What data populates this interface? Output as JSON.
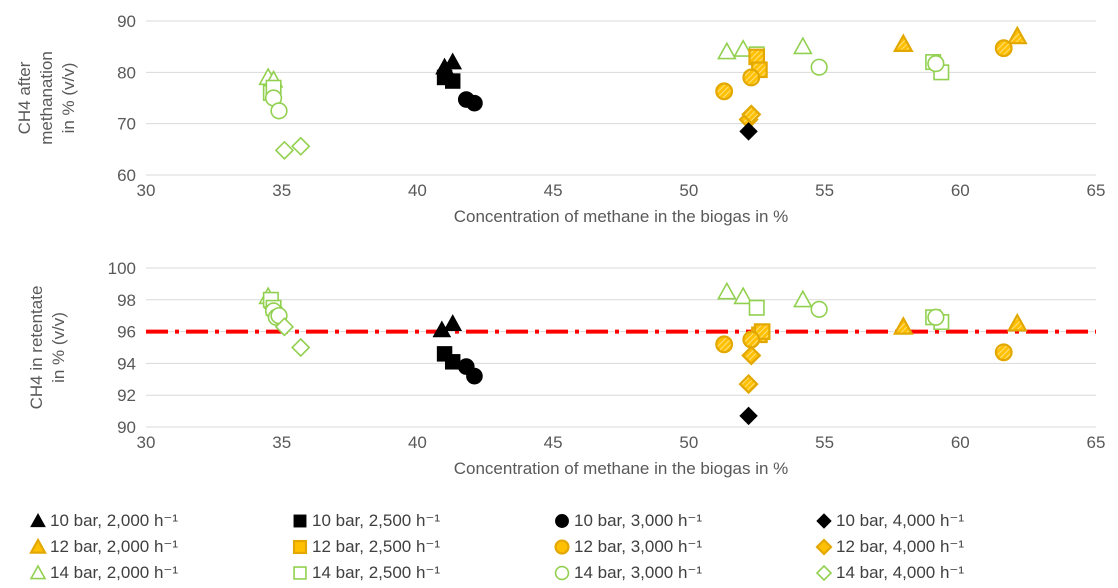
{
  "colors": {
    "s10": "#000000",
    "s12": "#FFC000",
    "s12_stroke": "#E3A800",
    "s14": "#92D050",
    "grid": "#D9D9D9",
    "axis_text": "#595959",
    "threshold": "#FF0000"
  },
  "legend": {
    "items": [
      {
        "label": "10 bar, 2,000 h⁻¹",
        "marker": "triangle",
        "style": "filled-black"
      },
      {
        "label": "10 bar, 2,500 h⁻¹",
        "marker": "square",
        "style": "filled-black"
      },
      {
        "label": "10 bar, 3,000 h⁻¹",
        "marker": "circle",
        "style": "filled-black"
      },
      {
        "label": "10 bar, 4,000 h⁻¹",
        "marker": "diamond",
        "style": "filled-black"
      },
      {
        "label": "12 bar, 2,000 h⁻¹",
        "marker": "triangle",
        "style": "hatched-orange"
      },
      {
        "label": "12 bar, 2,500 h⁻¹",
        "marker": "square",
        "style": "hatched-orange"
      },
      {
        "label": "12 bar, 3,000 h⁻¹",
        "marker": "circle",
        "style": "hatched-orange"
      },
      {
        "label": "12 bar, 4,000 h⁻¹",
        "marker": "diamond",
        "style": "hatched-orange"
      },
      {
        "label": "14 bar, 2,000 h⁻¹",
        "marker": "triangle",
        "style": "open-green"
      },
      {
        "label": "14 bar, 2,500 h⁻¹",
        "marker": "square",
        "style": "open-green"
      },
      {
        "label": "14 bar, 3,000 h⁻¹",
        "marker": "circle",
        "style": "open-green"
      },
      {
        "label": "14 bar, 4,000 h⁻¹",
        "marker": "diamond",
        "style": "open-green"
      }
    ]
  },
  "chart_data": [
    {
      "type": "scatter",
      "title": "",
      "xlabel": "Concentration of  methane in the biogas in %",
      "ylabel_lines": [
        "CH4 after",
        "methanation",
        "in % (v/v)"
      ],
      "xlim": [
        30,
        65
      ],
      "ylim": [
        60,
        90
      ],
      "xticks": [
        30,
        35,
        40,
        45,
        50,
        55,
        60,
        65
      ],
      "yticks": [
        60,
        70,
        80,
        90
      ],
      "grid": true,
      "series": [
        {
          "name": "10 bar, 2,000 h⁻¹",
          "marker": "triangle",
          "style": "filled-black",
          "x": [
            41.0,
            41.3
          ],
          "y": [
            81.0,
            82.0
          ]
        },
        {
          "name": "10 bar, 2,500 h⁻¹",
          "marker": "square",
          "style": "filled-black",
          "x": [
            41.0,
            41.3
          ],
          "y": [
            79.0,
            78.3
          ]
        },
        {
          "name": "10 bar, 3,000 h⁻¹",
          "marker": "circle",
          "style": "filled-black",
          "x": [
            41.8,
            42.1
          ],
          "y": [
            74.7,
            74.0
          ]
        },
        {
          "name": "10 bar, 4,000 h⁻¹",
          "marker": "diamond",
          "style": "filled-black",
          "x": [
            52.2
          ],
          "y": [
            68.5
          ]
        },
        {
          "name": "12 bar, 2,000 h⁻¹",
          "marker": "triangle",
          "style": "hatched-orange",
          "x": [
            57.9,
            62.1
          ],
          "y": [
            85.5,
            87.0
          ]
        },
        {
          "name": "12 bar, 2,500 h⁻¹",
          "marker": "square",
          "style": "hatched-orange",
          "x": [
            52.5,
            52.6
          ],
          "y": [
            83.0,
            80.5
          ]
        },
        {
          "name": "12 bar, 3,000 h⁻¹",
          "marker": "circle",
          "style": "hatched-orange",
          "x": [
            51.3,
            52.3,
            61.6
          ],
          "y": [
            76.3,
            79.0,
            84.7
          ]
        },
        {
          "name": "12 bar, 4,000 h⁻¹",
          "marker": "diamond",
          "style": "hatched-orange",
          "x": [
            52.2,
            52.3
          ],
          "y": [
            70.8,
            71.8
          ]
        },
        {
          "name": "14 bar, 2,000 h⁻¹",
          "marker": "triangle",
          "style": "open-green",
          "x": [
            34.5,
            34.7,
            51.4,
            52.0,
            54.2
          ],
          "y": [
            79.0,
            78.5,
            84.0,
            84.5,
            85.0
          ]
        },
        {
          "name": "14 bar, 2,500 h⁻¹",
          "marker": "square",
          "style": "open-green",
          "x": [
            34.6,
            34.7,
            52.5,
            59.0,
            59.3
          ],
          "y": [
            76.0,
            77.0,
            83.5,
            82.0,
            80.0
          ]
        },
        {
          "name": "14 bar, 3,000 h⁻¹",
          "marker": "circle",
          "style": "open-green",
          "x": [
            34.7,
            34.9,
            54.8,
            59.1
          ],
          "y": [
            75.0,
            72.5,
            81.0,
            81.7
          ]
        },
        {
          "name": "14 bar, 4,000 h⁻¹",
          "marker": "diamond",
          "style": "open-green",
          "x": [
            35.1,
            35.7
          ],
          "y": [
            64.8,
            65.6
          ]
        }
      ]
    },
    {
      "type": "scatter",
      "title": "",
      "xlabel": "Concentration of  methane in the biogas in %",
      "ylabel_lines": [
        "CH4 in retentate",
        "in % (v/v)"
      ],
      "xlim": [
        30,
        65
      ],
      "ylim": [
        90,
        100
      ],
      "xticks": [
        30,
        35,
        40,
        45,
        50,
        55,
        60,
        65
      ],
      "yticks": [
        90,
        92,
        94,
        96,
        98,
        100
      ],
      "grid": true,
      "reference_line": {
        "y": 96,
        "style": "dash-dot",
        "color": "#FF0000"
      },
      "series": [
        {
          "name": "10 bar, 2,000 h⁻¹",
          "marker": "triangle",
          "style": "filled-black",
          "x": [
            40.9,
            41.3
          ],
          "y": [
            96.1,
            96.5
          ]
        },
        {
          "name": "10 bar, 2,500 h⁻¹",
          "marker": "square",
          "style": "filled-black",
          "x": [
            41.0,
            41.3
          ],
          "y": [
            94.6,
            94.1
          ]
        },
        {
          "name": "10 bar, 3,000 h⁻¹",
          "marker": "circle",
          "style": "filled-black",
          "x": [
            41.8,
            42.1
          ],
          "y": [
            93.8,
            93.2
          ]
        },
        {
          "name": "10 bar, 4,000 h⁻¹",
          "marker": "diamond",
          "style": "filled-black",
          "x": [
            52.2
          ],
          "y": [
            90.7
          ]
        },
        {
          "name": "12 bar, 2,000 h⁻¹",
          "marker": "triangle",
          "style": "hatched-orange",
          "x": [
            57.9,
            62.1
          ],
          "y": [
            96.3,
            96.5
          ]
        },
        {
          "name": "12 bar, 2,500 h⁻¹",
          "marker": "square",
          "style": "hatched-orange",
          "x": [
            52.6,
            52.7
          ],
          "y": [
            95.8,
            96.0
          ]
        },
        {
          "name": "12 bar, 3,000 h⁻¹",
          "marker": "circle",
          "style": "hatched-orange",
          "x": [
            51.3,
            52.3,
            61.6
          ],
          "y": [
            95.2,
            95.5,
            94.7
          ]
        },
        {
          "name": "12 bar, 4,000 h⁻¹",
          "marker": "diamond",
          "style": "hatched-orange",
          "x": [
            52.2,
            52.3
          ],
          "y": [
            92.7,
            94.5
          ]
        },
        {
          "name": "14 bar, 2,000 h⁻¹",
          "marker": "triangle",
          "style": "open-green",
          "x": [
            34.5,
            34.7,
            51.4,
            52.0,
            54.2
          ],
          "y": [
            98.2,
            97.9,
            98.5,
            98.2,
            98.0
          ]
        },
        {
          "name": "14 bar, 2,500 h⁻¹",
          "marker": "square",
          "style": "open-green",
          "x": [
            34.6,
            34.7,
            52.5,
            59.0,
            59.3
          ],
          "y": [
            98.0,
            97.5,
            97.5,
            96.9,
            96.6
          ]
        },
        {
          "name": "14 bar, 3,000 h⁻¹",
          "marker": "circle",
          "style": "open-green",
          "x": [
            34.7,
            34.8,
            34.9,
            54.8,
            59.1
          ],
          "y": [
            97.3,
            96.9,
            97.0,
            97.4,
            96.9
          ]
        },
        {
          "name": "14 bar, 4,000 h⁻¹",
          "marker": "diamond",
          "style": "open-green",
          "x": [
            35.1,
            35.7
          ],
          "y": [
            96.3,
            95.0
          ]
        }
      ]
    }
  ]
}
